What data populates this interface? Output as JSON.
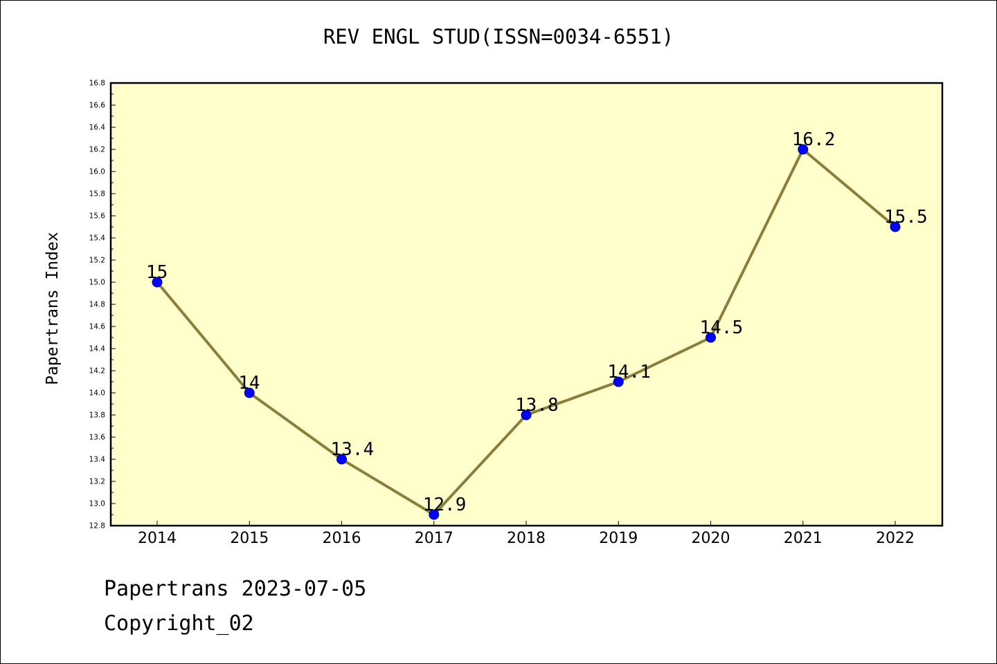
{
  "chart_data": {
    "type": "line",
    "title": "REV ENGL STUD(ISSN=0034-6551)",
    "xlabel": "",
    "ylabel": "Papertrans Index",
    "categories": [
      "2014",
      "2015",
      "2016",
      "2017",
      "2018",
      "2019",
      "2020",
      "2021",
      "2022"
    ],
    "series": [
      {
        "values": [
          15,
          14,
          13.4,
          12.9,
          13.8,
          14.1,
          14.5,
          16.2,
          15.5
        ],
        "data_labels": [
          "15",
          "14",
          "13.4",
          "12.9",
          "13.8",
          "14.1",
          "14.5",
          "16.2",
          "15.5"
        ]
      }
    ],
    "ylim": [
      12.8,
      16.8
    ],
    "yticks": [
      "12.8",
      "13.0",
      "13.2",
      "13.4",
      "13.6",
      "13.8",
      "14.0",
      "14.2",
      "14.4",
      "14.6",
      "14.8",
      "15.0",
      "15.2",
      "15.4",
      "15.6",
      "15.8",
      "16.0",
      "16.2",
      "16.4",
      "16.6",
      "16.8"
    ],
    "grid": false,
    "legend": "none",
    "colors": {
      "plot_background": "#ffffcc",
      "line": "#8b7d3a",
      "marker": "#0000ff"
    }
  },
  "footer": {
    "date_line": "Papertrans 2023-07-05",
    "copyright": "Copyright_02"
  }
}
